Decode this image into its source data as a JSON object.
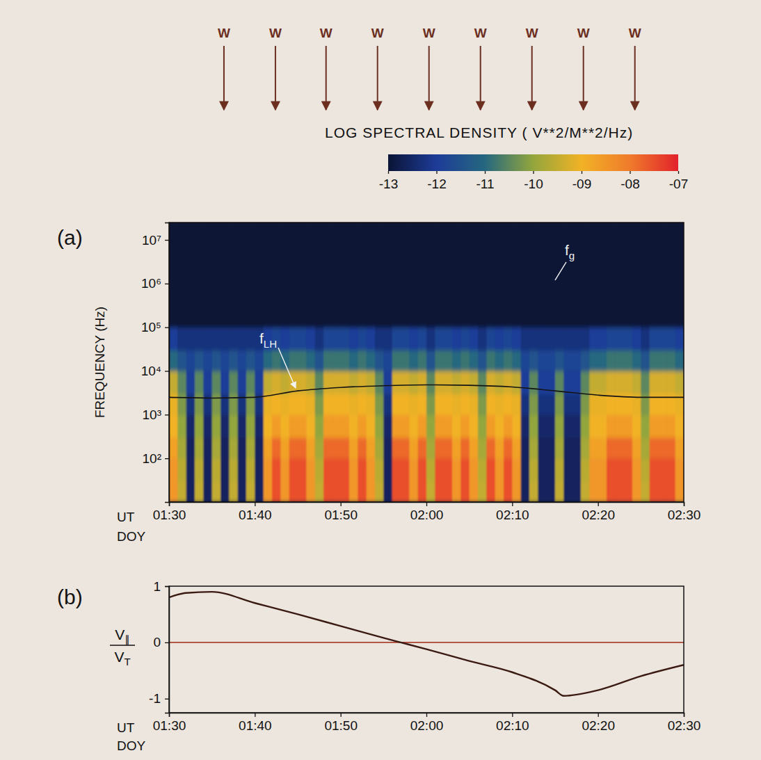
{
  "chart_data": [
    {
      "type": "heatmap",
      "panel": "(a)",
      "ylabel": "FREQUENCY (Hz)",
      "xlabel": "UT",
      "xlabel2": "DOY",
      "log": "y",
      "xlim": [
        90,
        150
      ],
      "xticks": [
        {
          "value": 90,
          "label": "01:30"
        },
        {
          "value": 100,
          "label": "01:40"
        },
        {
          "value": 110,
          "label": "01:50"
        },
        {
          "value": 120,
          "label": "02:00"
        },
        {
          "value": 130,
          "label": "02:10"
        },
        {
          "value": 140,
          "label": "02:20"
        },
        {
          "value": 150,
          "label": "02:30"
        }
      ],
      "ylim": [
        10,
        25000000
      ],
      "yticks": [
        {
          "value": 100,
          "label": "10²"
        },
        {
          "value": 1000,
          "label": "10³"
        },
        {
          "value": 10000,
          "label": "10⁴"
        },
        {
          "value": 100000,
          "label": "10⁵"
        },
        {
          "value": 1000000,
          "label": "10⁶"
        },
        {
          "value": 10000000,
          "label": "10⁷"
        }
      ],
      "x_edges": [
        90,
        91,
        92,
        93,
        94,
        95,
        96,
        97,
        98,
        99,
        100,
        101,
        102,
        103,
        104,
        105,
        106,
        107,
        108,
        109,
        110,
        111,
        112,
        113,
        114,
        115,
        116,
        117,
        118,
        119,
        120,
        121,
        122,
        123,
        124,
        125,
        126,
        127,
        128,
        129,
        130,
        131,
        132,
        133,
        134,
        135,
        136,
        137,
        138,
        139,
        140,
        141,
        142,
        143,
        144,
        145,
        146,
        147,
        148,
        149,
        150
      ],
      "y_edges": [
        10,
        30,
        100,
        300,
        1000,
        3000,
        10000,
        30000,
        100000,
        1000000,
        25000000
      ],
      "cells": [
        [
          -8.5,
          -9.5,
          -12.6,
          -9.5,
          -12.6,
          -9.5,
          -12.6,
          -9.5,
          -12.6,
          -9.5,
          -12.6,
          -8.5,
          -7.5,
          -8.5,
          -7.5,
          -7.5,
          -8.5,
          -9.5,
          -7.5,
          -7.5,
          -7.5,
          -8.5,
          -7.5,
          -8.5,
          -9.5,
          -12.6,
          -7.5,
          -7.5,
          -8.5,
          -7.5,
          -9.5,
          -7.5,
          -7.5,
          -8.5,
          -7.5,
          -8.5,
          -9.5,
          -7.5,
          -8.5,
          -7.5,
          -8.5,
          -12.6,
          -9.5,
          -12.6,
          -12.6,
          -9.5,
          -12.6,
          -12.6,
          -9.5,
          -8.5,
          -8.5,
          -7.5,
          -7.5,
          -7.5,
          -8.5,
          -9.5,
          -7.5,
          -7.5,
          -7.5,
          -8.5
        ],
        [
          -8.5,
          -9.6,
          -12.6,
          -9.6,
          -12.6,
          -9.6,
          -12.6,
          -9.6,
          -12.6,
          -9.6,
          -12.6,
          -8.5,
          -7.5,
          -8.5,
          -7.5,
          -7.5,
          -8.5,
          -9.6,
          -7.5,
          -7.5,
          -7.5,
          -8.5,
          -7.5,
          -8.5,
          -9.6,
          -12.6,
          -7.5,
          -7.5,
          -8.5,
          -7.5,
          -9.6,
          -7.5,
          -7.5,
          -8.5,
          -7.5,
          -8.5,
          -9.6,
          -7.5,
          -8.5,
          -7.5,
          -8.5,
          -12.6,
          -9.6,
          -12.6,
          -12.6,
          -9.6,
          -12.6,
          -12.6,
          -9.6,
          -8.5,
          -8.5,
          -7.5,
          -7.5,
          -7.5,
          -8.5,
          -9.6,
          -7.5,
          -7.5,
          -7.5,
          -8.5
        ],
        [
          -8.7,
          -9.8,
          -12.6,
          -9.8,
          -12.6,
          -9.8,
          -12.6,
          -9.8,
          -12.6,
          -9.8,
          -12.6,
          -8.7,
          -7.8,
          -8.7,
          -7.8,
          -7.8,
          -8.7,
          -9.8,
          -7.8,
          -7.8,
          -7.8,
          -8.7,
          -7.8,
          -8.7,
          -9.8,
          -12.6,
          -7.8,
          -7.8,
          -8.7,
          -7.8,
          -9.8,
          -7.8,
          -7.8,
          -8.7,
          -7.8,
          -8.7,
          -9.8,
          -7.8,
          -8.7,
          -7.8,
          -8.7,
          -12.6,
          -9.8,
          -12.6,
          -12.6,
          -9.8,
          -12.6,
          -12.6,
          -9.8,
          -8.7,
          -8.7,
          -7.8,
          -7.8,
          -7.8,
          -8.7,
          -9.8,
          -7.8,
          -7.8,
          -7.8,
          -8.7
        ],
        [
          -9,
          -10,
          -12.5,
          -10,
          -12.5,
          -10,
          -12.5,
          -10,
          -12.5,
          -10,
          -12.5,
          -9,
          -8.6,
          -9,
          -8.6,
          -8.6,
          -9,
          -10,
          -8.6,
          -8.6,
          -8.6,
          -9,
          -8.6,
          -9,
          -10,
          -12.5,
          -8.6,
          -8.6,
          -9,
          -8.6,
          -10,
          -8.6,
          -8.6,
          -9,
          -8.6,
          -9,
          -10,
          -8.6,
          -9,
          -8.6,
          -9,
          -12.5,
          -10,
          -12.5,
          -12.5,
          -10,
          -12.5,
          -12.5,
          -10,
          -9,
          -9,
          -8.6,
          -8.6,
          -8.6,
          -9,
          -10,
          -8.6,
          -8.6,
          -8.6,
          -9
        ],
        [
          -9.1,
          -10.2,
          -12.3,
          -10.2,
          -12.3,
          -10.2,
          -12.3,
          -10.2,
          -12.3,
          -10.2,
          -12.3,
          -9.1,
          -9,
          -9.1,
          -9,
          -9,
          -9.1,
          -10.2,
          -9,
          -9,
          -9,
          -9.1,
          -9,
          -9.1,
          -10.2,
          -12.3,
          -9,
          -9,
          -9.1,
          -9,
          -10.2,
          -9,
          -9,
          -9.1,
          -9,
          -9.1,
          -10.2,
          -9,
          -9.1,
          -9,
          -9.1,
          -12.3,
          -10.2,
          -12.3,
          -12.3,
          -10.2,
          -12.3,
          -12.3,
          -10.2,
          -9.1,
          -9.1,
          -9,
          -9,
          -9,
          -9.1,
          -10.2,
          -9,
          -9,
          -9,
          -9.1
        ],
        [
          -9.5,
          -10.5,
          -12,
          -10.5,
          -12,
          -10.5,
          -12,
          -10.5,
          -12,
          -10.5,
          -12,
          -9.5,
          -9.3,
          -9.5,
          -9.3,
          -9.3,
          -9.5,
          -10.5,
          -9.3,
          -9.3,
          -9.3,
          -9.5,
          -9.3,
          -9.5,
          -10.5,
          -12,
          -9.3,
          -9.3,
          -9.5,
          -9.3,
          -10.5,
          -9.3,
          -9.3,
          -9.5,
          -9.3,
          -9.5,
          -10.5,
          -9.3,
          -9.5,
          -9.3,
          -9.5,
          -12,
          -10.5,
          -12,
          -12,
          -10.5,
          -12,
          -12,
          -10.5,
          -9.5,
          -9.5,
          -9.3,
          -9.3,
          -9.3,
          -9.5,
          -10.5,
          -9.3,
          -9.3,
          -9.3,
          -9.5
        ],
        [
          -11,
          -11.5,
          -11.8,
          -11.5,
          -11.8,
          -11.5,
          -11.8,
          -11.5,
          -11.8,
          -11.5,
          -11.8,
          -11,
          -10.8,
          -11,
          -10.8,
          -10.8,
          -11,
          -11.5,
          -10.8,
          -10.8,
          -10.8,
          -11,
          -10.8,
          -11,
          -11.5,
          -11.8,
          -10.8,
          -10.8,
          -11,
          -10.8,
          -11.5,
          -10.8,
          -10.8,
          -11,
          -10.8,
          -11,
          -11.5,
          -10.8,
          -11,
          -10.8,
          -11,
          -11.8,
          -11.5,
          -11.8,
          -11.8,
          -11.5,
          -11.8,
          -11.8,
          -11.5,
          -11,
          -11,
          -10.8,
          -10.8,
          -10.8,
          -11,
          -11.5,
          -10.8,
          -10.8,
          -10.8,
          -11
        ],
        [
          -12,
          -12.3,
          -12.3,
          -12.3,
          -12.3,
          -12.3,
          -12.3,
          -12.3,
          -12.3,
          -12.3,
          -12.3,
          -12,
          -11.8,
          -12,
          -11.8,
          -11.8,
          -12,
          -12.3,
          -11.8,
          -11.8,
          -11.8,
          -12,
          -11.8,
          -12,
          -12.3,
          -12.3,
          -11.8,
          -11.8,
          -12,
          -11.8,
          -12.3,
          -11.8,
          -11.8,
          -12,
          -11.8,
          -12,
          -12.3,
          -11.8,
          -12,
          -11.8,
          -12,
          -12.3,
          -12.3,
          -12.3,
          -12.3,
          -12.3,
          -12.3,
          -12.3,
          -12.3,
          -12,
          -12,
          -11.8,
          -11.8,
          -11.8,
          -12,
          -12.3,
          -11.8,
          -11.8,
          -11.8,
          -12
        ],
        [
          -13,
          -13,
          -13,
          -13,
          -13,
          -13,
          -13,
          -13,
          -13,
          -13,
          -13,
          -13,
          -13,
          -13,
          -13,
          -13,
          -13,
          -13,
          -13,
          -13,
          -13,
          -13,
          -13,
          -13,
          -13,
          -13,
          -13,
          -13,
          -13,
          -13,
          -13,
          -13,
          -13,
          -13,
          -13,
          -13,
          -13,
          -13,
          -13,
          -13,
          -13,
          -13,
          -13,
          -13,
          -13,
          -13,
          -13,
          -13,
          -13,
          -13,
          -13,
          -13,
          -13,
          -13,
          -13,
          -13,
          -13,
          -13,
          -13,
          -13
        ],
        [
          -13,
          -13,
          -13,
          -13,
          -13,
          -13,
          -13,
          -13,
          -13,
          -13,
          -13,
          -13,
          -13,
          -13,
          -13,
          -13,
          -13,
          -13,
          -13,
          -13,
          -13,
          -13,
          -13,
          -13,
          -13,
          -13,
          -13,
          -13,
          -13,
          -13,
          -13,
          -13,
          -13,
          -13,
          -13,
          -13,
          -13,
          -13,
          -13,
          -13,
          -13,
          -13,
          -13,
          -13,
          -13,
          -13,
          -13,
          -13,
          -13,
          -13,
          -13,
          -13,
          -13,
          -13,
          -13,
          -13,
          -13,
          -13,
          -13,
          -13
        ]
      ],
      "colorbar": {
        "title": "LOG SPECTRAL DENSITY ( V**2/M**2/Hz)",
        "range": [
          -13,
          -7
        ],
        "ticks": [
          -13,
          -12,
          -11,
          -10,
          {
            "value": -9,
            "label": "-09"
          },
          {
            "value": -8,
            "label": "-08"
          },
          {
            "value": -7,
            "label": "-07"
          }
        ]
      },
      "series": [
        {
          "name": "f",
          "subscript": "LH",
          "type": "line",
          "color": "#141414",
          "x": [
            90,
            95,
            100,
            105,
            110,
            115,
            120,
            125,
            130,
            135,
            140,
            145,
            150
          ],
          "values": [
            2500,
            2400,
            2500,
            3500,
            4200,
            4600,
            4800,
            4700,
            4300,
            3500,
            2800,
            2500,
            2500
          ]
        }
      ],
      "annotations": [
        {
          "text": "f",
          "subscript": "g",
          "x": 135,
          "y": 1200000
        }
      ],
      "markers": {
        "label": "W",
        "x": [
          96.4,
          102.4,
          108.3,
          114.3,
          120.3,
          126.3,
          132.3,
          138.3,
          144.3
        ]
      }
    },
    {
      "type": "line",
      "panel": "(b)",
      "xlabel": "UT",
      "xlabel2": "DOY",
      "ylabel": {
        "numerator": "V",
        "numerator_sub": "∥",
        "denominator": "V",
        "denominator_sub": "T"
      },
      "xlim": [
        90,
        150
      ],
      "xticks": [
        {
          "value": 90,
          "label": "01:30"
        },
        {
          "value": 100,
          "label": "01:40"
        },
        {
          "value": 110,
          "label": "01:50"
        },
        {
          "value": 120,
          "label": "02:00"
        },
        {
          "value": 130,
          "label": "02:10"
        },
        {
          "value": 140,
          "label": "02:20"
        },
        {
          "value": 150,
          "label": "02:30"
        }
      ],
      "ylim": [
        -1.25,
        1
      ],
      "yticks": [
        -1,
        0,
        1
      ],
      "reference_line": 0,
      "series": [
        {
          "color": "#3b1a12",
          "x": [
            90,
            92,
            95,
            100,
            105,
            110,
            115,
            117,
            120,
            125,
            130,
            135,
            136,
            140,
            145,
            150
          ],
          "values": [
            0.8,
            0.88,
            0.9,
            0.7,
            0.5,
            0.29,
            0.08,
            0,
            -0.12,
            -0.33,
            -0.53,
            -0.85,
            -0.95,
            -0.85,
            -0.6,
            -0.4
          ]
        }
      ]
    }
  ]
}
